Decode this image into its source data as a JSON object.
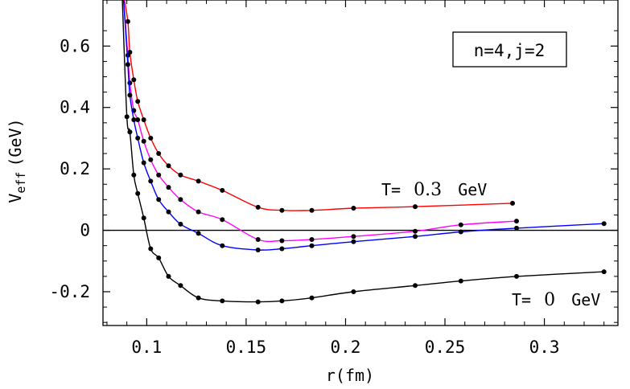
{
  "chart_data": {
    "type": "line",
    "xlabel": "r(fm)",
    "ylabel": {
      "main": "V",
      "sub": "eff",
      "unit": "(GeV)"
    },
    "xlim": [
      0.078,
      0.337
    ],
    "ylim": [
      -0.31,
      0.75
    ],
    "x_ticks": [
      0.1,
      0.15,
      0.2,
      0.25,
      0.3
    ],
    "x_tick_labels": [
      "0.1",
      "0.15",
      "0.2",
      "0.25",
      "0.3"
    ],
    "y_ticks": [
      -0.2,
      0,
      0.2,
      0.4,
      0.6
    ],
    "y_tick_labels": [
      "-0.2",
      "0",
      "0.2",
      "0.4",
      "0.6"
    ],
    "grid": false,
    "legend_box": "n=4,j=2",
    "annotations": [
      {
        "prefix": "T=",
        "value": "0.3",
        "unit": "GeV"
      },
      {
        "prefix": "T=",
        "value": "0",
        "unit": "GeV"
      }
    ],
    "series": [
      {
        "color": "#ff0000",
        "x": [
          0.0905,
          0.0915,
          0.0935,
          0.0955,
          0.0985,
          0.102,
          0.106,
          0.111,
          0.117,
          0.126,
          0.138,
          0.156,
          0.168,
          0.183,
          0.204,
          0.235,
          0.284
        ],
        "y": [
          0.68,
          0.58,
          0.49,
          0.42,
          0.36,
          0.3,
          0.25,
          0.21,
          0.18,
          0.16,
          0.13,
          0.075,
          0.065,
          0.065,
          0.072,
          0.077,
          0.088
        ]
      },
      {
        "color": "#ff00ff",
        "x": [
          0.0905,
          0.0915,
          0.0935,
          0.0955,
          0.0985,
          0.102,
          0.106,
          0.111,
          0.117,
          0.126,
          0.138,
          0.156,
          0.168,
          0.183,
          0.204,
          0.235,
          0.258,
          0.286
        ],
        "y": [
          0.57,
          0.48,
          0.39,
          0.36,
          0.29,
          0.23,
          0.18,
          0.14,
          0.1,
          0.06,
          0.035,
          -0.03,
          -0.034,
          -0.03,
          -0.02,
          -0.003,
          0.018,
          0.03
        ]
      },
      {
        "color": "#0000ff",
        "x": [
          0.0905,
          0.0915,
          0.0935,
          0.0955,
          0.0985,
          0.102,
          0.106,
          0.111,
          0.117,
          0.126,
          0.138,
          0.156,
          0.168,
          0.183,
          0.204,
          0.235,
          0.258,
          0.286,
          0.33
        ],
        "y": [
          0.54,
          0.44,
          0.36,
          0.3,
          0.22,
          0.16,
          0.1,
          0.06,
          0.02,
          -0.01,
          -0.05,
          -0.064,
          -0.06,
          -0.05,
          -0.037,
          -0.02,
          -0.005,
          0.007,
          0.022
        ]
      },
      {
        "color": "#000000",
        "x": [
          0.09,
          0.0915,
          0.0935,
          0.0955,
          0.0985,
          0.102,
          0.106,
          0.111,
          0.117,
          0.126,
          0.138,
          0.156,
          0.168,
          0.183,
          0.204,
          0.235,
          0.258,
          0.286,
          0.33
        ],
        "y": [
          0.37,
          0.32,
          0.18,
          0.12,
          0.04,
          -0.06,
          -0.09,
          -0.15,
          -0.18,
          -0.22,
          -0.23,
          -0.233,
          -0.23,
          -0.22,
          -0.2,
          -0.18,
          -0.165,
          -0.15,
          -0.135
        ]
      }
    ]
  }
}
